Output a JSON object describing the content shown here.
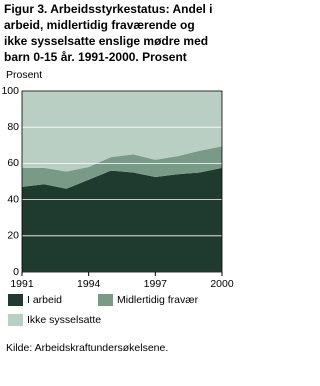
{
  "chart_data": {
    "type": "stacked-area",
    "title": [
      "Figur 3. Arbeidsstyrkestatus: Andel i",
      "arbeid, midlertidig fraværende og",
      "ikke sysselsatte enslige mødre med",
      "barn 0-15 år. 1991-2000. Prosent"
    ],
    "y_label": "Prosent",
    "x": [
      1991,
      1992,
      1993,
      1994,
      1995,
      1996,
      1997,
      1998,
      1999,
      2000
    ],
    "series": [
      {
        "name": "I arbeid",
        "color": "#1f3a2e",
        "values": [
          47,
          48.5,
          46,
          51,
          56,
          55,
          52.5,
          54,
          55,
          57.5
        ]
      },
      {
        "name": "Midlertidig fravær",
        "color": "#7a9a88",
        "values": [
          10.5,
          9,
          9.5,
          7,
          7.5,
          10,
          9.5,
          10,
          12,
          12
        ]
      },
      {
        "name": "Ikke sysselsatte",
        "color": "#b9cfc4",
        "values": [
          42.5,
          42.5,
          44.5,
          42,
          36.5,
          35,
          38,
          36,
          33,
          30.5
        ]
      }
    ],
    "xlim": [
      1991,
      2000
    ],
    "xticks": [
      1991,
      1994,
      1997,
      2000
    ],
    "ylim": [
      0,
      100
    ],
    "yticks": [
      0,
      20,
      40,
      60,
      80,
      100
    ],
    "grid": true,
    "source": "Kilde: Arbeidskraftundersøkelsene."
  }
}
